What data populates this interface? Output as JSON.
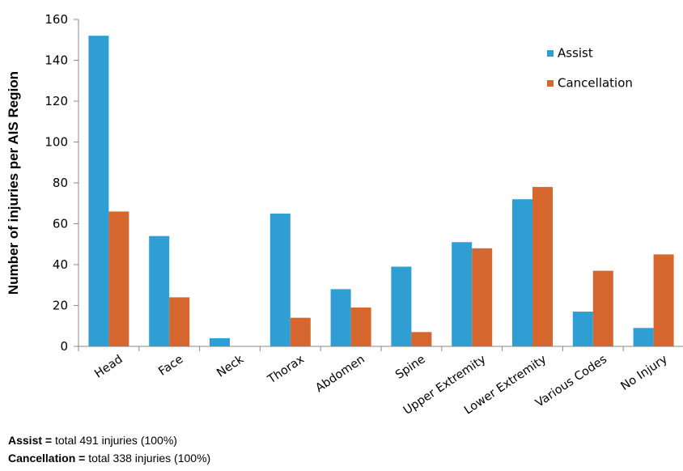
{
  "chart_data": {
    "type": "bar",
    "ylabel": "Number of injuries per AIS Region",
    "ylim": [
      0,
      160
    ],
    "yticks": [
      0,
      20,
      40,
      60,
      80,
      100,
      120,
      140,
      160
    ],
    "grid": false,
    "legend_position": "top-right",
    "categories": [
      "Head",
      "Face",
      "Neck",
      "Thorax",
      "Abdomen",
      "Spine",
      "Upper Extremity",
      "Lower Extremity",
      "Various Codes",
      "No Injury"
    ],
    "series": [
      {
        "name": "Assist",
        "color": "#2f9fd3",
        "values": [
          152,
          54,
          4,
          65,
          28,
          39,
          51,
          72,
          17,
          9
        ]
      },
      {
        "name": "Cancellation",
        "color": "#d4662e",
        "values": [
          66,
          24,
          0,
          14,
          19,
          7,
          48,
          78,
          37,
          45
        ]
      }
    ]
  },
  "notes": [
    {
      "bold": "Assist =",
      "text": " total 491 injuries (100%)"
    },
    {
      "bold": "Cancellation =",
      "text": " total 338 injuries (100%)"
    }
  ]
}
